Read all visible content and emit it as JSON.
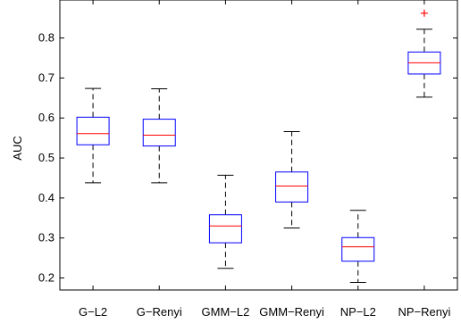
{
  "chart_data": {
    "type": "boxplot",
    "title": "",
    "xlabel": "",
    "ylabel": "AUC",
    "ylim": [
      0.17,
      0.895
    ],
    "yticks": [
      0.2,
      0.3,
      0.4,
      0.5,
      0.6,
      0.7,
      0.8
    ],
    "ytick_labels": [
      "0.2",
      "0.3",
      "0.4",
      "0.5",
      "0.6",
      "0.7",
      "0.8"
    ],
    "grid": false,
    "categories": [
      "G−L2",
      "G−Renyi",
      "GMM−L2",
      "GMM−Renyi",
      "NP−L2",
      "NP−Renyi"
    ],
    "boxes": [
      {
        "whisker_low": 0.438,
        "q1": 0.533,
        "median": 0.561,
        "q3": 0.602,
        "whisker_high": 0.674,
        "outliers": []
      },
      {
        "whisker_low": 0.438,
        "q1": 0.53,
        "median": 0.557,
        "q3": 0.597,
        "whisker_high": 0.673,
        "outliers": []
      },
      {
        "whisker_low": 0.224,
        "q1": 0.288,
        "median": 0.33,
        "q3": 0.358,
        "whisker_high": 0.457,
        "outliers": []
      },
      {
        "whisker_low": 0.325,
        "q1": 0.39,
        "median": 0.43,
        "q3": 0.465,
        "whisker_high": 0.566,
        "outliers": []
      },
      {
        "whisker_low": 0.189,
        "q1": 0.242,
        "median": 0.278,
        "q3": 0.301,
        "whisker_high": 0.369,
        "outliers": []
      },
      {
        "whisker_low": 0.652,
        "q1": 0.71,
        "median": 0.738,
        "q3": 0.765,
        "whisker_high": 0.822,
        "outliers": [
          0.862
        ]
      }
    ],
    "colors": {
      "box": "#0000ff",
      "median": "#ff0000",
      "whisker": "#000000",
      "outlier": "#ff0000",
      "axes": "#000000"
    }
  }
}
